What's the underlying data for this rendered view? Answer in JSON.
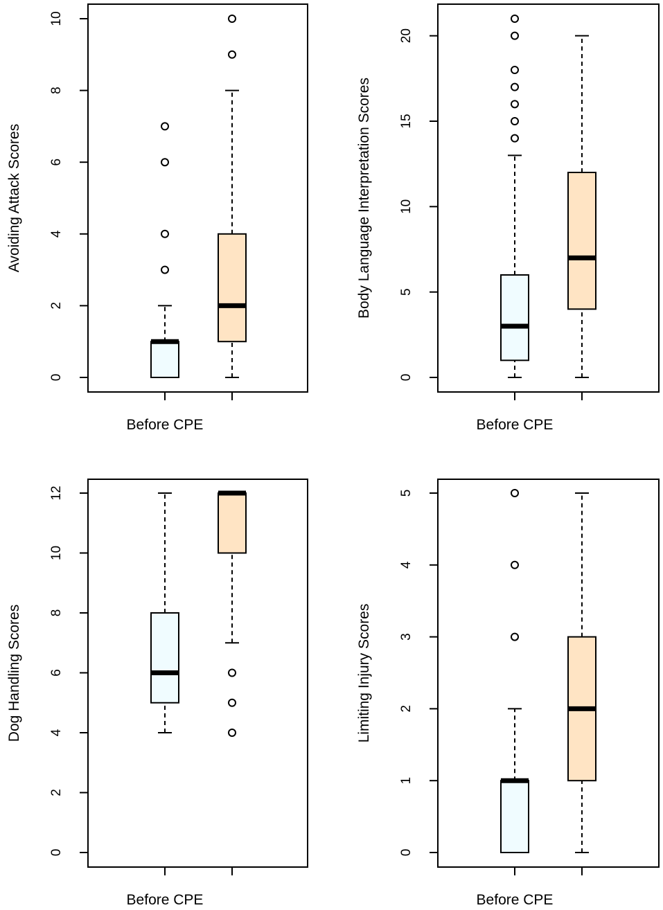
{
  "colors": {
    "before_fill": "#f0fcff",
    "after_fill": "#ffe4c4",
    "stroke": "#000000"
  },
  "chart_data": [
    {
      "type": "box",
      "ylabel": "Avoiding Attack Scores",
      "x_tick_labels": [
        "Before CPE",
        ""
      ],
      "ylim": [
        0,
        10
      ],
      "yticks": [
        0,
        2,
        4,
        6,
        8,
        10
      ],
      "series": [
        {
          "name": "Before CPE",
          "min": 0,
          "q1": 0,
          "median": 1,
          "q3": 1,
          "max": 2,
          "outliers": [
            3,
            4,
            6,
            7
          ]
        },
        {
          "name": "",
          "min": 0,
          "q1": 1,
          "median": 2,
          "q3": 4,
          "max": 8,
          "outliers": [
            9,
            10
          ]
        }
      ]
    },
    {
      "type": "box",
      "ylabel": "Body Language Interpretation Scores",
      "x_tick_labels": [
        "Before CPE",
        ""
      ],
      "ylim": [
        0,
        21
      ],
      "yticks": [
        0,
        5,
        10,
        15,
        20
      ],
      "series": [
        {
          "name": "Before CPE",
          "min": 0,
          "q1": 1,
          "median": 3,
          "q3": 6,
          "max": 13,
          "outliers": [
            14,
            15,
            16,
            17,
            18,
            20,
            21
          ]
        },
        {
          "name": "",
          "min": 0,
          "q1": 4,
          "median": 7,
          "q3": 12,
          "max": 20,
          "outliers": []
        }
      ]
    },
    {
      "type": "box",
      "ylabel": "Dog Handling Scores",
      "x_tick_labels": [
        "Before CPE",
        ""
      ],
      "ylim": [
        0,
        12
      ],
      "yticks": [
        0,
        2,
        4,
        6,
        8,
        10,
        12
      ],
      "series": [
        {
          "name": "Before CPE",
          "min": 4,
          "q1": 5,
          "median": 6,
          "q3": 8,
          "max": 12,
          "outliers": []
        },
        {
          "name": "",
          "min": 7,
          "q1": 10,
          "median": 12,
          "q3": 12,
          "max": 12,
          "outliers": [
            4,
            5,
            6
          ]
        }
      ]
    },
    {
      "type": "box",
      "ylabel": "Limiting Injury Scores",
      "x_tick_labels": [
        "Before CPE",
        ""
      ],
      "ylim": [
        0,
        5
      ],
      "yticks": [
        0,
        1,
        2,
        3,
        4,
        5
      ],
      "series": [
        {
          "name": "Before CPE",
          "min": 0,
          "q1": 0,
          "median": 1,
          "q3": 1,
          "max": 2,
          "outliers": [
            3,
            4,
            5
          ]
        },
        {
          "name": "",
          "min": 0,
          "q1": 1,
          "median": 2,
          "q3": 3,
          "max": 5,
          "outliers": []
        }
      ]
    }
  ]
}
